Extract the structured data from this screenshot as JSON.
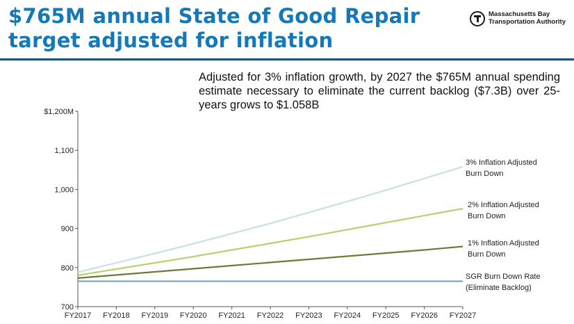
{
  "header": {
    "title": "$765M annual State of Good Repair target adjusted for inflation",
    "logo_line1": "Massachusetts Bay",
    "logo_line2": "Transportation Authority",
    "logo_icon": "mbta-t-logo-icon"
  },
  "annotation": "Adjusted for 3% inflation growth, by 2027 the $765M annual spending estimate necessary to eliminate the current backlog ($7.3B) over 25-years grows to $1.058B",
  "colors": {
    "title": "#1679b7",
    "rule": "#1f4e79",
    "sgr": "#6f9cbd",
    "one_pct": "#6b7a3a",
    "two_pct": "#b5d16c",
    "three_pct": "#c8dfe6"
  },
  "chart_data": {
    "type": "line",
    "x": [
      "FY2017",
      "FY2018",
      "FY2019",
      "FY2020",
      "FY2021",
      "FY2022",
      "FY2023",
      "FY2024",
      "FY2025",
      "FY2026",
      "FY2027"
    ],
    "ylim": [
      700,
      1200
    ],
    "yticks": [
      {
        "value": 700,
        "label": "700"
      },
      {
        "value": 800,
        "label": "800"
      },
      {
        "value": 900,
        "label": "900"
      },
      {
        "value": 1000,
        "label": "1,000"
      },
      {
        "value": 1100,
        "label": "1,100"
      },
      {
        "value": 1200,
        "label": "$1,200M"
      }
    ],
    "grid": false,
    "series": [
      {
        "key": "sgr",
        "name_lines": [
          "SGR Burn Down Rate",
          "(Eliminate Backlog)"
        ],
        "values": [
          765,
          765,
          765,
          765,
          765,
          765,
          765,
          765,
          765,
          765,
          765
        ]
      },
      {
        "key": "one",
        "name_lines": [
          "1% Inflation Adjusted",
          "Burn Down"
        ],
        "values": [
          773,
          781,
          789,
          797,
          805,
          813,
          821,
          829,
          837,
          845,
          854
        ]
      },
      {
        "key": "two",
        "name_lines": [
          "2% Inflation Adjusted",
          "Burn Down"
        ],
        "values": [
          780,
          796,
          812,
          828,
          845,
          862,
          879,
          897,
          915,
          933,
          951
        ]
      },
      {
        "key": "three",
        "name_lines": [
          "3% Inflation Adjusted",
          "Burn Down"
        ],
        "values": [
          788,
          812,
          836,
          861,
          887,
          913,
          941,
          969,
          998,
          1028,
          1058
        ]
      }
    ]
  }
}
